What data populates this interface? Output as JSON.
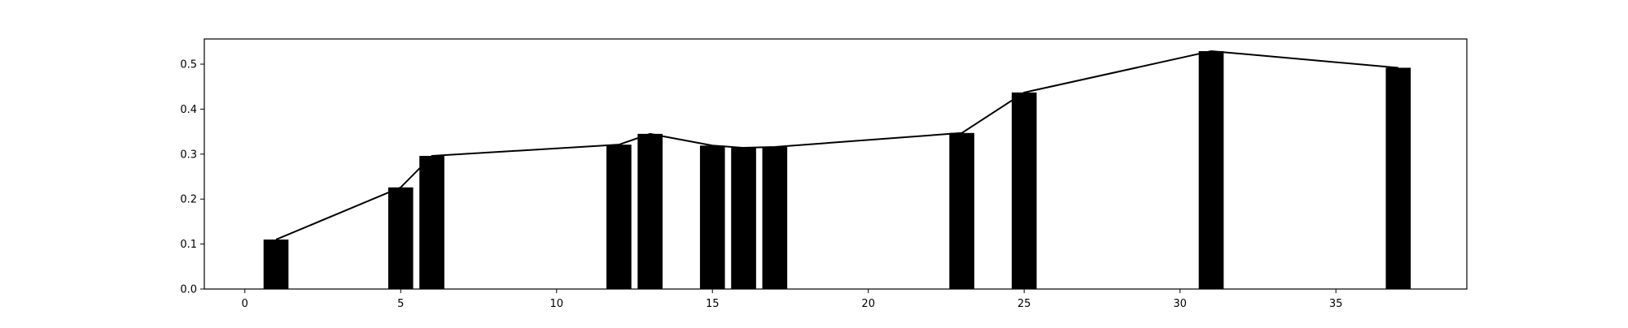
{
  "chart_data": {
    "type": "bar",
    "title": "",
    "xlabel": "",
    "ylabel": "",
    "xlim": [
      -1.3,
      39.2
    ],
    "ylim": [
      0,
      0.556
    ],
    "x_ticks": [
      0,
      5,
      10,
      15,
      20,
      25,
      30,
      35
    ],
    "y_ticks": [
      0.0,
      0.1,
      0.2,
      0.3,
      0.4,
      0.5
    ],
    "x_tick_labels": [
      "0",
      "5",
      "10",
      "15",
      "20",
      "25",
      "30",
      "35"
    ],
    "y_tick_labels": [
      "0.0",
      "0.1",
      "0.2",
      "0.3",
      "0.4",
      "0.5"
    ],
    "x": [
      1,
      5,
      6,
      12,
      13,
      15,
      16,
      17,
      23,
      25,
      31,
      37
    ],
    "values": [
      0.11,
      0.226,
      0.296,
      0.321,
      0.345,
      0.319,
      0.314,
      0.316,
      0.347,
      0.437,
      0.529,
      0.492
    ],
    "line_values": [
      0.11,
      0.226,
      0.296,
      0.321,
      0.345,
      0.319,
      0.314,
      0.316,
      0.347,
      0.437,
      0.529,
      0.492
    ],
    "grid": false,
    "legend": "none",
    "bar_color": "#000000",
    "line_color": "#000000"
  }
}
